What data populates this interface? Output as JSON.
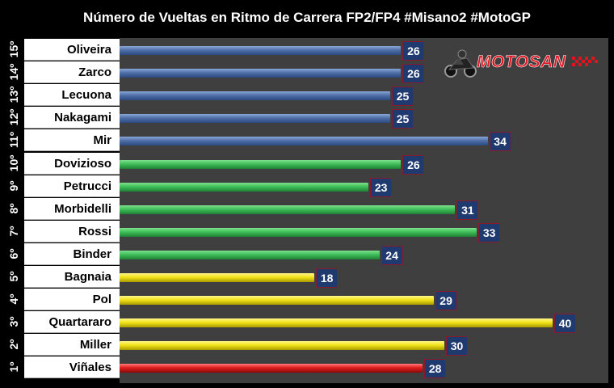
{
  "title": "Número de Vueltas en Ritmo de Carrera FP2/FP4 #Misano2 #MotoGP",
  "logo": {
    "text": "MOTOSAN"
  },
  "colors": {
    "blue": [
      "#8aa8d8",
      "#4f6fa8",
      "#2c4a80"
    ],
    "green": [
      "#7ee08e",
      "#3fbf59",
      "#1f7f36"
    ],
    "yellow": [
      "#fff88a",
      "#f2e21a",
      "#a89a00"
    ],
    "red": [
      "#ff7a7a",
      "#e01c1c",
      "#8a0a0a"
    ]
  },
  "chart_data": {
    "type": "bar",
    "orientation": "horizontal",
    "title": "Número de Vueltas en Ritmo de Carrera FP2/FP4 #Misano2 #MotoGP",
    "xlim": [
      0,
      45
    ],
    "rows": [
      {
        "rank": "15º",
        "rider": "Oliveira",
        "value": 26,
        "color": "blue"
      },
      {
        "rank": "14º",
        "rider": "Zarco",
        "value": 26,
        "color": "blue"
      },
      {
        "rank": "13º",
        "rider": "Lecuona",
        "value": 25,
        "color": "blue"
      },
      {
        "rank": "12º",
        "rider": "Nakagami",
        "value": 25,
        "color": "blue"
      },
      {
        "rank": "11º",
        "rider": "Mir",
        "value": 34,
        "color": "blue"
      },
      {
        "rank": "10º",
        "rider": "Dovizioso",
        "value": 26,
        "color": "green"
      },
      {
        "rank": "9º",
        "rider": "Petrucci",
        "value": 23,
        "color": "green"
      },
      {
        "rank": "8º",
        "rider": "Morbidelli",
        "value": 31,
        "color": "green"
      },
      {
        "rank": "7º",
        "rider": "Rossi",
        "value": 33,
        "color": "green"
      },
      {
        "rank": "6º",
        "rider": "Binder",
        "value": 24,
        "color": "green"
      },
      {
        "rank": "5º",
        "rider": "Bagnaia",
        "value": 18,
        "color": "yellow"
      },
      {
        "rank": "4º",
        "rider": "Pol",
        "value": 29,
        "color": "yellow"
      },
      {
        "rank": "3º",
        "rider": "Quartararo",
        "value": 40,
        "color": "yellow"
      },
      {
        "rank": "2º",
        "rider": "Miller",
        "value": 30,
        "color": "yellow"
      },
      {
        "rank": "1º",
        "rider": "Viñales",
        "value": 28,
        "color": "red"
      }
    ]
  }
}
